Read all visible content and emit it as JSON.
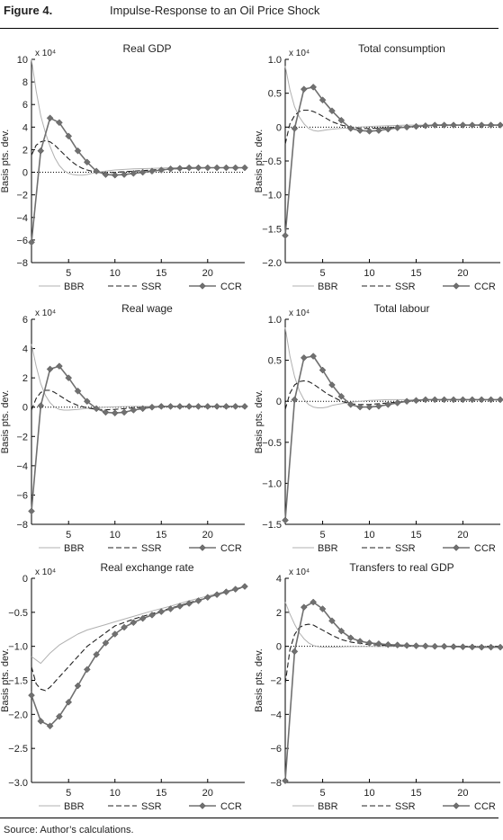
{
  "figure": {
    "label": "Figure 4.",
    "title": "Impulse-Response to an Oil Price Shock",
    "source": "Source: Author’s calculations."
  },
  "colors": {
    "BBR": "#b0b0b0",
    "SSR": "#222222",
    "CCR": "#707070",
    "axis": "#000000"
  },
  "chart_data": [
    {
      "type": "line",
      "title": "Real GDP",
      "ylabel": "Basis pts. dev.",
      "exponent": "x 10⁴",
      "ylim": [
        -8,
        10
      ],
      "yticks": [
        -8,
        -6,
        -4,
        -2,
        0,
        2,
        4,
        6,
        8,
        10
      ],
      "ytick_labels": [
        "−8",
        "−6",
        "−4",
        "−2",
        "0",
        "2",
        "4",
        "6",
        "8",
        "10"
      ],
      "xlim": [
        1,
        24
      ],
      "xticks": [
        5,
        10,
        15,
        20
      ],
      "legend": [
        "BBR",
        "SSR",
        "CCR"
      ],
      "series": [
        {
          "name": "BBR",
          "x": [
            1,
            1.5,
            2,
            2.5,
            3,
            3.5,
            4,
            4.5,
            5,
            5.5,
            6,
            6.5,
            7,
            7.5,
            8,
            9,
            10,
            12,
            14,
            16,
            18,
            20,
            22,
            24
          ],
          "y": [
            10,
            7.2,
            5,
            3.5,
            2.3,
            1.3,
            0.6,
            0.15,
            -0.1,
            -0.2,
            -0.25,
            -0.25,
            -0.2,
            -0.1,
            0,
            0.1,
            0.2,
            0.3,
            0.35,
            0.4,
            0.4,
            0.4,
            0.4,
            0.4
          ]
        },
        {
          "name": "SSR",
          "x": [
            1,
            1.5,
            2,
            2.5,
            3,
            3.5,
            4,
            4.5,
            5,
            5.5,
            6,
            6.5,
            7,
            7.5,
            8,
            9,
            10,
            12,
            14,
            16,
            18,
            20,
            22,
            24
          ],
          "y": [
            1.5,
            2.4,
            2.7,
            2.8,
            2.7,
            2.4,
            2.0,
            1.6,
            1.2,
            0.85,
            0.55,
            0.35,
            0.2,
            0.1,
            0,
            -0.05,
            0,
            0.1,
            0.2,
            0.3,
            0.35,
            0.4,
            0.4,
            0.4
          ]
        },
        {
          "name": "CCR",
          "x": [
            1,
            2,
            3,
            4,
            5,
            6,
            7,
            8,
            9,
            10,
            11,
            12,
            13,
            14,
            15,
            16,
            17,
            18,
            19,
            20,
            21,
            22,
            23,
            24
          ],
          "y": [
            -6.2,
            1.9,
            4.8,
            4.4,
            3.2,
            1.9,
            0.9,
            0.1,
            -0.2,
            -0.25,
            -0.2,
            -0.1,
            0,
            0.1,
            0.2,
            0.3,
            0.35,
            0.4,
            0.4,
            0.4,
            0.4,
            0.4,
            0.4,
            0.4
          ]
        }
      ]
    },
    {
      "type": "line",
      "title": "Total consumption",
      "ylabel": "Basis pts. dev.",
      "exponent": "x 10⁴",
      "ylim": [
        -2.0,
        1.0
      ],
      "yticks": [
        -2.0,
        -1.5,
        -1.0,
        -0.5,
        0,
        0.5,
        1.0
      ],
      "ytick_labels": [
        "−2.0",
        "−1.5",
        "−1.0",
        "−0.5",
        "0",
        "0.5",
        "1.0"
      ],
      "xlim": [
        1,
        24
      ],
      "xticks": [
        5,
        10,
        15,
        20
      ],
      "legend": [
        "BBR",
        "SSR",
        "CCR"
      ],
      "series": [
        {
          "name": "BBR",
          "x": [
            1,
            1.5,
            2,
            2.5,
            3,
            3.5,
            4,
            4.5,
            5,
            5.5,
            6,
            7,
            8,
            9,
            10,
            12,
            14,
            16,
            18,
            20,
            22,
            24
          ],
          "y": [
            0.9,
            0.55,
            0.3,
            0.15,
            0.05,
            -0.02,
            -0.05,
            -0.06,
            -0.05,
            -0.04,
            -0.03,
            -0.02,
            -0.01,
            0,
            0.01,
            0.02,
            0.03,
            0.03,
            0.03,
            0.03,
            0.03,
            0.03
          ]
        },
        {
          "name": "SSR",
          "x": [
            1,
            1.5,
            2,
            2.5,
            3,
            3.5,
            4,
            4.5,
            5,
            5.5,
            6,
            7,
            8,
            9,
            10,
            12,
            14,
            16,
            18,
            20,
            22,
            24
          ],
          "y": [
            -0.25,
            0.05,
            0.17,
            0.23,
            0.25,
            0.25,
            0.23,
            0.2,
            0.16,
            0.12,
            0.08,
            0.03,
            0,
            -0.02,
            -0.02,
            -0.01,
            0.01,
            0.02,
            0.03,
            0.03,
            0.03,
            0.03
          ]
        },
        {
          "name": "CCR",
          "x": [
            1,
            2,
            3,
            4,
            5,
            6,
            7,
            8,
            9,
            10,
            11,
            12,
            13,
            14,
            15,
            16,
            17,
            18,
            19,
            20,
            21,
            22,
            23,
            24
          ],
          "y": [
            -1.6,
            -0.02,
            0.56,
            0.59,
            0.4,
            0.24,
            0.1,
            -0.02,
            -0.05,
            -0.06,
            -0.05,
            -0.03,
            -0.01,
            0,
            0.01,
            0.02,
            0.03,
            0.03,
            0.03,
            0.03,
            0.03,
            0.03,
            0.03,
            0.03
          ]
        }
      ]
    },
    {
      "type": "line",
      "title": "Real wage",
      "ylabel": "Basis pts. dev.",
      "exponent": "x 10⁴",
      "ylim": [
        -8,
        6
      ],
      "yticks": [
        -8,
        -6,
        -4,
        -2,
        0,
        2,
        4,
        6
      ],
      "ytick_labels": [
        "−8",
        "−6",
        "−4",
        "−2",
        "0",
        "2",
        "4",
        "6"
      ],
      "xlim": [
        1,
        24
      ],
      "xticks": [
        5,
        10,
        15,
        20
      ],
      "legend": [
        "BBR",
        "SSR",
        "CCR"
      ],
      "series": [
        {
          "name": "BBR",
          "x": [
            1,
            1.5,
            2,
            2.5,
            3,
            3.5,
            4,
            4.5,
            5,
            5.5,
            6,
            7,
            8,
            9,
            10,
            12,
            14,
            16,
            18,
            20,
            22,
            24
          ],
          "y": [
            4.3,
            2.8,
            1.6,
            0.8,
            0.3,
            0,
            -0.15,
            -0.2,
            -0.2,
            -0.18,
            -0.15,
            -0.08,
            -0.03,
            0,
            0.02,
            0.05,
            0.05,
            0.05,
            0.05,
            0.05,
            0.05,
            0.05
          ]
        },
        {
          "name": "SSR",
          "x": [
            1,
            1.5,
            2,
            2.5,
            3,
            3.5,
            4,
            4.5,
            5,
            5.5,
            6,
            7,
            8,
            9,
            10,
            12,
            14,
            16,
            18,
            20,
            22,
            24
          ],
          "y": [
            -0.2,
            0.6,
            1.0,
            1.15,
            1.15,
            1.0,
            0.8,
            0.6,
            0.4,
            0.25,
            0.12,
            -0.05,
            -0.15,
            -0.18,
            -0.15,
            -0.05,
            0,
            0.05,
            0.05,
            0.05,
            0.05,
            0.05
          ]
        },
        {
          "name": "CCR",
          "x": [
            1,
            2,
            3,
            4,
            5,
            6,
            7,
            8,
            9,
            10,
            11,
            12,
            13,
            14,
            15,
            16,
            17,
            18,
            19,
            20,
            21,
            22,
            23,
            24
          ],
          "y": [
            -7.1,
            0.1,
            2.6,
            2.8,
            2.0,
            1.1,
            0.4,
            -0.1,
            -0.35,
            -0.4,
            -0.35,
            -0.2,
            -0.1,
            0,
            0.05,
            0.05,
            0.05,
            0.05,
            0.05,
            0.05,
            0.05,
            0.05,
            0.05,
            0.05
          ]
        }
      ]
    },
    {
      "type": "line",
      "title": "Total labour",
      "ylabel": "Basis pts. dev.",
      "exponent": "x 10⁴",
      "ylim": [
        -1.5,
        1.0
      ],
      "yticks": [
        -1.5,
        -1.0,
        -0.5,
        0,
        0.5,
        1.0
      ],
      "ytick_labels": [
        "−1.5",
        "−1.0",
        "−0.5",
        "0",
        "0.5",
        "1.0"
      ],
      "xlim": [
        1,
        24
      ],
      "xticks": [
        5,
        10,
        15,
        20
      ],
      "legend": [
        "BBR",
        "SSR",
        "CCR"
      ],
      "series": [
        {
          "name": "BBR",
          "x": [
            1,
            1.5,
            2,
            2.5,
            3,
            3.5,
            4,
            4.5,
            5,
            5.5,
            6,
            7,
            8,
            9,
            10,
            12,
            14,
            16,
            18,
            20,
            22,
            24
          ],
          "y": [
            0.9,
            0.55,
            0.3,
            0.13,
            0.02,
            -0.04,
            -0.07,
            -0.08,
            -0.08,
            -0.07,
            -0.05,
            -0.03,
            -0.01,
            0,
            0.01,
            0.02,
            0.02,
            0.02,
            0.02,
            0.02,
            0.02,
            0.02
          ]
        },
        {
          "name": "SSR",
          "x": [
            1,
            1.5,
            2,
            2.5,
            3,
            3.5,
            4,
            4.5,
            5,
            5.5,
            6,
            7,
            8,
            9,
            10,
            12,
            14,
            16,
            18,
            20,
            22,
            24
          ],
          "y": [
            -0.1,
            0.1,
            0.2,
            0.24,
            0.25,
            0.24,
            0.21,
            0.17,
            0.13,
            0.09,
            0.06,
            0,
            -0.03,
            -0.04,
            -0.04,
            -0.02,
            0,
            0.01,
            0.02,
            0.02,
            0.02,
            0.02
          ]
        },
        {
          "name": "CCR",
          "x": [
            1,
            2,
            3,
            4,
            5,
            6,
            7,
            8,
            9,
            10,
            11,
            12,
            13,
            14,
            15,
            16,
            17,
            18,
            19,
            20,
            21,
            22,
            23,
            24
          ],
          "y": [
            -1.45,
            0.02,
            0.53,
            0.55,
            0.38,
            0.2,
            0.06,
            -0.04,
            -0.07,
            -0.07,
            -0.06,
            -0.04,
            -0.02,
            0,
            0.01,
            0.02,
            0.02,
            0.02,
            0.02,
            0.02,
            0.02,
            0.02,
            0.02,
            0.02
          ]
        }
      ]
    },
    {
      "type": "line",
      "title": "Real exchange rate",
      "ylabel": "Basis pts. dev.",
      "exponent": "x 10⁴",
      "ylim": [
        -3.0,
        0
      ],
      "yticks": [
        -3.0,
        -2.5,
        -2.0,
        -1.5,
        -1.0,
        -0.5,
        0
      ],
      "ytick_labels": [
        "−3.0",
        "−2.5",
        "−2.0",
        "−1.5",
        "−1.0",
        "−0.5",
        "0"
      ],
      "xlim": [
        1,
        24
      ],
      "xticks": [
        5,
        10,
        15,
        20
      ],
      "legend": [
        "BBR",
        "SSR",
        "CCR"
      ],
      "series": [
        {
          "name": "BBR",
          "x": [
            1,
            2,
            3,
            4,
            5,
            6,
            7,
            8,
            9,
            10,
            12,
            14,
            16,
            18,
            20,
            22,
            24
          ],
          "y": [
            -1.15,
            -1.25,
            -1.1,
            -0.98,
            -0.9,
            -0.82,
            -0.76,
            -0.72,
            -0.68,
            -0.64,
            -0.56,
            -0.48,
            -0.41,
            -0.33,
            -0.26,
            -0.19,
            -0.12
          ]
        },
        {
          "name": "SSR",
          "x": [
            1,
            1.5,
            2,
            2.5,
            3,
            4,
            5,
            6,
            7,
            8,
            9,
            10,
            12,
            14,
            16,
            18,
            20,
            22,
            24
          ],
          "y": [
            -1.3,
            -1.55,
            -1.63,
            -1.65,
            -1.6,
            -1.45,
            -1.3,
            -1.15,
            -1.0,
            -0.9,
            -0.8,
            -0.7,
            -0.6,
            -0.52,
            -0.44,
            -0.36,
            -0.28,
            -0.2,
            -0.13
          ]
        },
        {
          "name": "CCR",
          "x": [
            1,
            2,
            3,
            4,
            5,
            6,
            7,
            8,
            9,
            10,
            11,
            12,
            13,
            14,
            15,
            16,
            17,
            18,
            19,
            20,
            21,
            22,
            23,
            24
          ],
          "y": [
            -1.72,
            -2.1,
            -2.17,
            -2.03,
            -1.82,
            -1.58,
            -1.34,
            -1.12,
            -0.95,
            -0.82,
            -0.72,
            -0.65,
            -0.59,
            -0.54,
            -0.49,
            -0.45,
            -0.41,
            -0.37,
            -0.33,
            -0.28,
            -0.24,
            -0.2,
            -0.16,
            -0.12
          ]
        }
      ]
    },
    {
      "type": "line",
      "title": "Transfers to real GDP",
      "ylabel": "Basis pts. dev.",
      "exponent": "x 10⁴",
      "ylim": [
        -8,
        4
      ],
      "yticks": [
        -8,
        -6,
        -4,
        -2,
        0,
        2,
        4
      ],
      "ytick_labels": [
        "−8",
        "−6",
        "−4",
        "−2",
        "0",
        "2",
        "4"
      ],
      "xlim": [
        1,
        24
      ],
      "xticks": [
        5,
        10,
        15,
        20
      ],
      "legend": [
        "BBR",
        "SSR",
        "CCR"
      ],
      "series": [
        {
          "name": "BBR",
          "x": [
            1,
            1.5,
            2,
            2.5,
            3,
            3.5,
            4,
            4.5,
            5,
            5.5,
            6,
            7,
            8,
            10,
            12,
            14,
            16,
            18,
            20,
            22,
            24
          ],
          "y": [
            2.6,
            1.9,
            1.3,
            0.8,
            0.45,
            0.2,
            0.05,
            -0.02,
            -0.05,
            -0.05,
            -0.05,
            -0.03,
            -0.01,
            0,
            0,
            0,
            0,
            0,
            0,
            0,
            0
          ]
        },
        {
          "name": "SSR",
          "x": [
            1,
            1.5,
            2,
            2.5,
            3,
            3.5,
            4,
            4.5,
            5,
            5.5,
            6,
            7,
            8,
            10,
            12,
            14,
            16,
            18,
            20,
            22,
            24
          ],
          "y": [
            -2.2,
            -0.2,
            0.7,
            1.1,
            1.25,
            1.3,
            1.25,
            1.1,
            0.95,
            0.8,
            0.65,
            0.4,
            0.25,
            0.1,
            0.05,
            0.02,
            0,
            0,
            0,
            0,
            0
          ]
        },
        {
          "name": "CCR",
          "x": [
            1,
            2,
            3,
            4,
            5,
            6,
            7,
            8,
            9,
            10,
            11,
            12,
            13,
            14,
            15,
            16,
            17,
            18,
            19,
            20,
            21,
            22,
            23,
            24
          ],
          "y": [
            -7.9,
            -0.3,
            2.3,
            2.6,
            2.2,
            1.5,
            0.9,
            0.5,
            0.3,
            0.2,
            0.15,
            0.1,
            0.08,
            0.05,
            0.03,
            0.02,
            0,
            0,
            -0.02,
            -0.03,
            -0.04,
            -0.05,
            -0.05,
            -0.05
          ]
        }
      ]
    }
  ]
}
